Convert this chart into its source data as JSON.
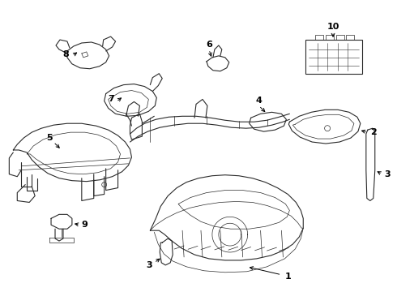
{
  "background_color": "#ffffff",
  "line_color": "#2a2a2a",
  "label_color": "#000000",
  "fig_width": 4.9,
  "fig_height": 3.6,
  "dpi": 100,
  "border_color": "#cccccc"
}
